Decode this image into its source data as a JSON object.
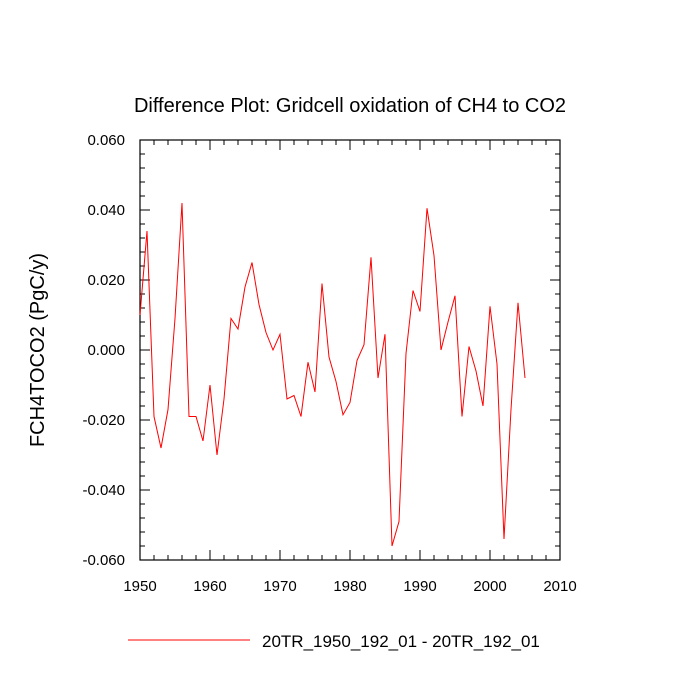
{
  "chart_data": {
    "type": "line",
    "title": "Difference Plot: Gridcell oxidation of CH4 to CO2",
    "xlabel": "",
    "ylabel": "FCH4TOCO2  (PgC/y)",
    "xlim": [
      1950,
      2010
    ],
    "ylim": [
      -0.06,
      0.06
    ],
    "x_ticks": [
      1950,
      1960,
      1970,
      1980,
      1990,
      2000,
      2010
    ],
    "y_ticks": [
      -0.06,
      -0.04,
      -0.02,
      0.0,
      0.02,
      0.04,
      0.06
    ],
    "x_tick_labels": [
      "1950",
      "1960",
      "1970",
      "1980",
      "1990",
      "2000",
      "2010"
    ],
    "y_tick_labels": [
      "-0.060",
      "-0.040",
      "-0.020",
      "0.000",
      "0.020",
      "0.040",
      "0.060"
    ],
    "grid": false,
    "legend_position": "bottom",
    "series": [
      {
        "name": "20TR_1950_192_01 - 20TR_192_01",
        "color": "#ff0000",
        "x": [
          1950,
          1951,
          1952,
          1953,
          1954,
          1955,
          1956,
          1957,
          1958,
          1959,
          1960,
          1961,
          1962,
          1963,
          1964,
          1965,
          1966,
          1967,
          1968,
          1969,
          1970,
          1971,
          1972,
          1973,
          1974,
          1975,
          1976,
          1977,
          1978,
          1979,
          1980,
          1981,
          1982,
          1983,
          1984,
          1985,
          1986,
          1987,
          1988,
          1989,
          1990,
          1991,
          1992,
          1993,
          1994,
          1995,
          1996,
          1997,
          1998,
          1999,
          2000,
          2001,
          2002,
          2003,
          2004,
          2005
        ],
        "values": [
          0.01,
          0.034,
          -0.019,
          -0.028,
          -0.017,
          0.009,
          0.042,
          -0.019,
          -0.019,
          -0.026,
          -0.01,
          -0.03,
          -0.014,
          0.009,
          0.006,
          0.018,
          0.025,
          0.013,
          0.005,
          0.0,
          0.0045,
          -0.014,
          -0.013,
          -0.019,
          -0.0035,
          -0.012,
          0.019,
          -0.002,
          -0.009,
          -0.0185,
          -0.015,
          -0.003,
          0.0015,
          0.0265,
          -0.008,
          0.0045,
          -0.056,
          -0.049,
          -0.001,
          0.017,
          0.011,
          0.0405,
          0.027,
          0.0,
          0.008,
          0.0155,
          -0.019,
          0.001,
          -0.006,
          -0.016,
          0.0125,
          -0.004,
          -0.054,
          -0.017,
          0.0135,
          -0.008
        ]
      }
    ]
  }
}
